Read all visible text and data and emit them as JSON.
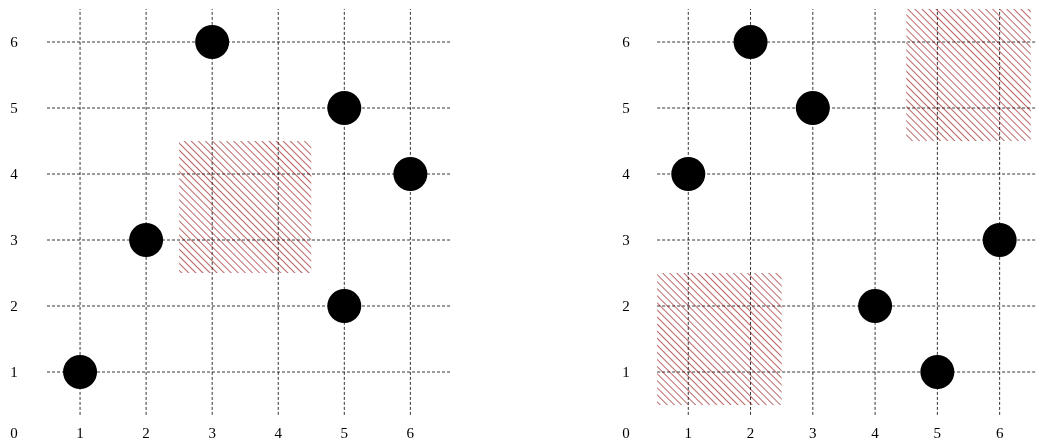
{
  "chart_data": [
    {
      "type": "scatter",
      "marker": "circle",
      "grid": true,
      "xlim": [
        0,
        6.6
      ],
      "ylim": [
        0,
        6.5
      ],
      "xticks": [
        0,
        1,
        2,
        3,
        4,
        5,
        6
      ],
      "yticks": [
        1,
        2,
        3,
        4,
        5,
        6
      ],
      "series": [
        {
          "type": "area",
          "color": "#8b0000",
          "x": [
            2.5,
            4.5
          ],
          "values": [
            null,
            null
          ],
          "lower": [
            2.5,
            2.5
          ],
          "upper": [
            4.5,
            4.5
          ]
        },
        {
          "color": "#000000",
          "x": [
            1,
            2,
            3,
            5,
            5,
            6
          ],
          "values": [
            1,
            3,
            6,
            2,
            5,
            4
          ]
        }
      ]
    },
    {
      "type": "scatter",
      "marker": "circle",
      "grid": true,
      "xlim": [
        0,
        6.6
      ],
      "ylim": [
        0,
        6.5
      ],
      "xticks": [
        0,
        1,
        2,
        3,
        4,
        5,
        6
      ],
      "yticks": [
        1,
        2,
        3,
        4,
        5,
        6
      ],
      "series": [
        {
          "type": "area",
          "color": "#8b0000",
          "x": [
            0.5,
            2.5
          ],
          "values": [
            null,
            null
          ],
          "lower": [
            0.5,
            0.5
          ],
          "upper": [
            2.5,
            2.5
          ]
        },
        {
          "type": "area",
          "color": "#8b0000",
          "x": [
            4.5,
            6.5
          ],
          "values": [
            null,
            null
          ],
          "lower": [
            4.5,
            4.5
          ],
          "upper": [
            6.5,
            6.5
          ]
        },
        {
          "color": "#000000",
          "x": [
            1,
            2,
            3,
            4,
            5,
            6
          ],
          "values": [
            4,
            6,
            5,
            2,
            1,
            3
          ]
        }
      ]
    }
  ]
}
